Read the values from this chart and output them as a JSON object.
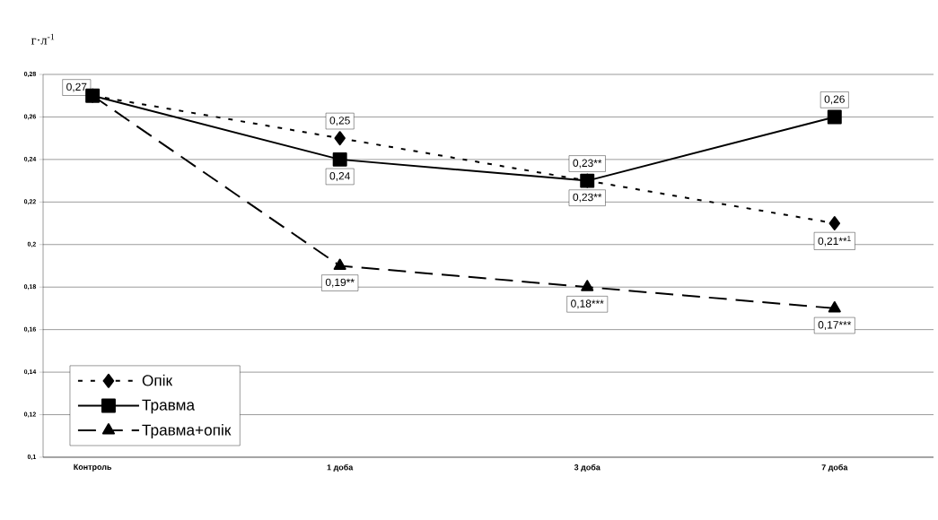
{
  "chart_data": {
    "type": "line",
    "ylabel": "г·л$^{-1}$",
    "categories": [
      "Контроль",
      "1 доба",
      "3 доба",
      "7 доба"
    ],
    "ylim": [
      0.1,
      0.28
    ],
    "yticks": [
      {
        "value": 0.1,
        "label": "0,1"
      },
      {
        "value": 0.12,
        "label": "0,12"
      },
      {
        "value": 0.14,
        "label": "0,14"
      },
      {
        "value": 0.16,
        "label": "0,16"
      },
      {
        "value": 0.18,
        "label": "0,18"
      },
      {
        "value": 0.2,
        "label": "0,2"
      },
      {
        "value": 0.22,
        "label": "0,22"
      },
      {
        "value": 0.24,
        "label": "0,24"
      },
      {
        "value": 0.26,
        "label": "0,26"
      },
      {
        "value": 0.28,
        "label": "0,28"
      }
    ],
    "grid": "y",
    "legend": "bottom left",
    "series": [
      {
        "name": "Опік",
        "color": "#000000",
        "marker": "diamond",
        "line_style": "dotted",
        "values": [
          0.27,
          0.25,
          0.23,
          0.21
        ],
        "value_labels": [
          null,
          "0,25",
          "0,23**",
          "0,21**$^{1}$"
        ]
      },
      {
        "name": "Травма",
        "color": "#000000",
        "marker": "square",
        "line_style": "solid",
        "values": [
          0.27,
          0.24,
          0.23,
          0.26
        ],
        "value_labels": [
          "0,27",
          "0,24",
          "0,23**",
          "0,26"
        ]
      },
      {
        "name": "Травма+опік",
        "color": "#000000",
        "marker": "triangle",
        "line_style": "dashed",
        "values": [
          0.27,
          0.19,
          0.18,
          0.17
        ],
        "value_labels": [
          null,
          "0,19**",
          "0,18***",
          "0,17***"
        ]
      }
    ]
  }
}
